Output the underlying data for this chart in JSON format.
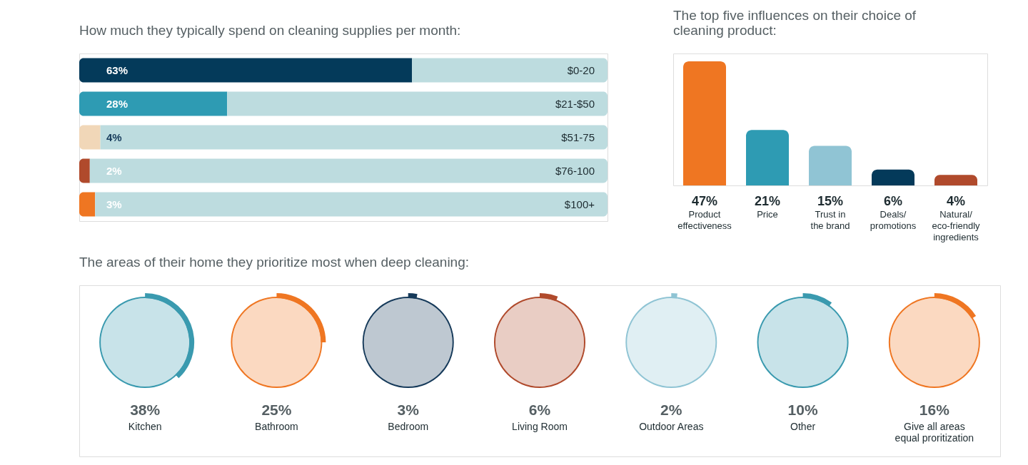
{
  "chart_data": [
    {
      "type": "bar",
      "title": "How much they typically spend on cleaning supplies per month:",
      "orientation": "horizontal",
      "stacked": true,
      "categories": [
        "$0-20",
        "$21-$50",
        "$51-75",
        "$76-100",
        "$100+"
      ],
      "xlim": [
        0,
        100
      ],
      "series": [
        {
          "colors": [
            "#043a5a",
            "#2e9bb3",
            "#f1d7b8",
            "#b04a2c",
            "#ef7622"
          ],
          "values": [
            63,
            28,
            4,
            2,
            3
          ],
          "value_labels": [
            "63%",
            "28%",
            "4%",
            "2%",
            "3%"
          ]
        },
        {
          "color": "#bddcdf",
          "values": [
            37,
            72,
            96,
            98,
            97
          ]
        }
      ]
    },
    {
      "type": "bar",
      "title": "The top five influences on their choice of cleaning product:",
      "categories": [
        "Product\neffectiveness",
        "Price",
        "Trust in\nthe brand",
        "Deals/\npromotions",
        "Natural/\neco-friendly\ningredients"
      ],
      "values": [
        47,
        21,
        15,
        6,
        4
      ],
      "colors": [
        "#ef7622",
        "#2e9bb3",
        "#90c4d4",
        "#043a5a",
        "#b04a2c"
      ],
      "value_labels": [
        "47%",
        "21%",
        "15%",
        "6%",
        "4%"
      ]
    },
    {
      "type": "other",
      "title": "The areas of their home they prioritize most when deep cleaning:",
      "categories": [
        "Kitchen",
        "Bathroom",
        "Bedroom",
        "Living Room",
        "Outdoor Areas",
        "Other",
        "Give all areas\nequal proritization"
      ],
      "values": [
        38,
        25,
        3,
        6,
        2,
        10,
        16
      ],
      "colors": [
        "#3a9aaf",
        "#ef7622",
        "#163a5a",
        "#b04a2c",
        "#8fc4d4",
        "#3a9aaf",
        "#ef7622"
      ],
      "value_labels": [
        "38%",
        "25%",
        "3%",
        "6%",
        "2%",
        "10%",
        "16%"
      ]
    }
  ]
}
